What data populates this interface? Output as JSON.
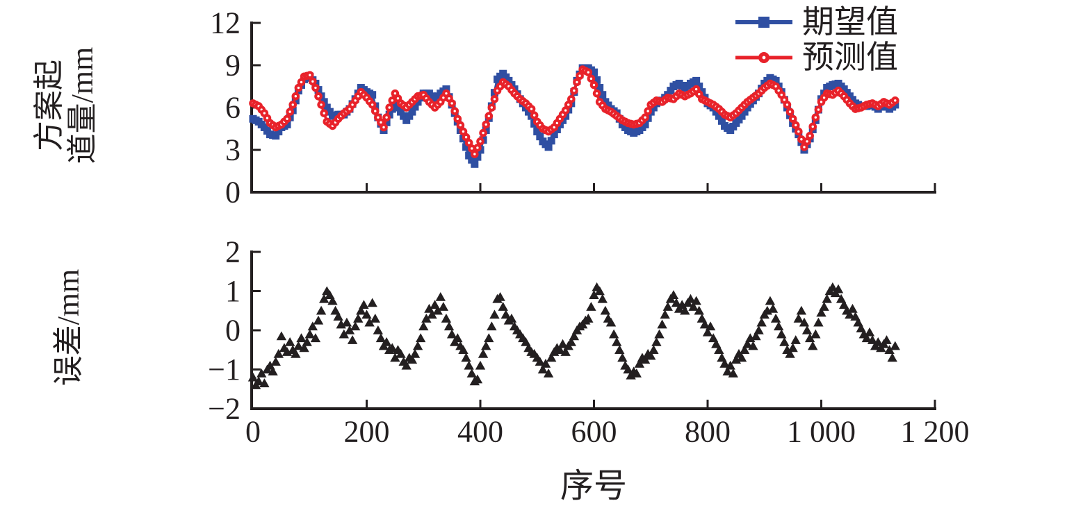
{
  "figure": {
    "xlabel": "序号",
    "top_ylabel_line1": "方案起",
    "top_ylabel_line2": "道量/mm",
    "bottom_ylabel": "误差/mm",
    "legend": {
      "expected": "期望值",
      "predicted": "预测值"
    }
  },
  "colors": {
    "expected_blue": "#2F4FA2",
    "predicted_red": "#E8222A",
    "ink_black": "#231F20",
    "background": "#FFFFFF"
  },
  "chart_data": [
    {
      "type": "line",
      "title": "",
      "ylabel": "方案起道量/mm",
      "xlabel": "",
      "xlim": [
        0,
        1200
      ],
      "ylim": [
        0,
        12
      ],
      "yticks": [
        0,
        3,
        6,
        9,
        12
      ],
      "ytick_labels": [
        "0",
        "3",
        "6",
        "9",
        "12"
      ],
      "xticks": [
        0,
        200,
        400,
        600,
        800,
        1000,
        1200
      ],
      "xtick_labels_shown": false,
      "grid": false,
      "legend_position": "top-right",
      "x_start": 0,
      "x_step": 10,
      "series": [
        {
          "name": "期望值",
          "color": "#2F4FA2",
          "marker": "square",
          "values": [
            5.2,
            5.0,
            4.6,
            4.1,
            4.0,
            4.6,
            4.8,
            5.8,
            7.2,
            8.0,
            8.2,
            7.7,
            6.8,
            6.0,
            5.4,
            5.5,
            5.5,
            5.9,
            6.6,
            7.4,
            7.1,
            6.9,
            5.3,
            4.4,
            5.5,
            6.3,
            5.7,
            5.1,
            5.7,
            6.4,
            7.0,
            7.0,
            6.6,
            7.0,
            7.3,
            6.2,
            5.0,
            3.8,
            2.6,
            2.0,
            3.0,
            4.4,
            6.1,
            8.0,
            8.4,
            7.9,
            7.3,
            6.6,
            6.0,
            5.4,
            4.3,
            3.6,
            3.2,
            4.1,
            4.8,
            5.4,
            6.3,
            7.9,
            8.8,
            8.8,
            8.5,
            7.4,
            6.4,
            5.9,
            5.6,
            4.8,
            4.4,
            4.2,
            4.4,
            4.8,
            5.7,
            6.3,
            6.5,
            6.9,
            7.5,
            7.7,
            7.4,
            7.7,
            7.9,
            7.1,
            6.3,
            6.0,
            5.4,
            4.7,
            4.4,
            4.9,
            5.4,
            6.0,
            6.5,
            7.0,
            7.7,
            8.1,
            7.9,
            7.1,
            6.0,
            4.9,
            4.1,
            3.0,
            3.8,
            5.1,
            6.6,
            7.4,
            7.6,
            7.7,
            7.3,
            6.8,
            6.3,
            6.1,
            6.1,
            6.2,
            5.9,
            6.2,
            5.9,
            6.2
          ]
        },
        {
          "name": "预测值",
          "color": "#E8222A",
          "marker": "circle-dot",
          "values": [
            6.3,
            6.1,
            5.6,
            4.9,
            4.6,
            4.8,
            5.2,
            6.2,
            7.4,
            8.2,
            8.3,
            7.4,
            6.2,
            5.0,
            4.7,
            5.2,
            5.6,
            5.9,
            6.5,
            7.1,
            6.7,
            6.2,
            5.3,
            4.6,
            6.0,
            7.0,
            6.3,
            6.0,
            6.4,
            6.8,
            6.9,
            6.4,
            6.0,
            6.4,
            7.0,
            6.3,
            5.2,
            4.3,
            3.5,
            2.7,
            3.6,
            4.8,
            6.0,
            7.2,
            7.8,
            7.5,
            7.0,
            6.6,
            6.3,
            5.9,
            5.0,
            4.5,
            4.3,
            4.6,
            5.2,
            5.8,
            6.6,
            7.8,
            8.7,
            8.5,
            7.6,
            6.4,
            5.9,
            5.7,
            5.4,
            5.1,
            4.9,
            4.8,
            4.9,
            5.3,
            6.2,
            6.5,
            6.4,
            6.7,
            6.6,
            7.0,
            6.8,
            7.0,
            7.3,
            6.6,
            6.4,
            6.2,
            5.9,
            5.5,
            5.3,
            5.6,
            6.0,
            6.4,
            6.7,
            7.0,
            7.4,
            7.7,
            7.5,
            6.9,
            6.2,
            5.2,
            4.3,
            3.2,
            4.0,
            5.3,
            6.4,
            7.0,
            6.9,
            7.2,
            6.8,
            6.3,
            5.9,
            6.0,
            6.2,
            6.3,
            6.1,
            6.4,
            6.2,
            6.5
          ]
        }
      ]
    },
    {
      "type": "scatter",
      "title": "",
      "ylabel": "误差/mm",
      "xlabel": "序号",
      "xlim": [
        0,
        1200
      ],
      "ylim": [
        -2,
        2
      ],
      "yticks": [
        -2,
        -1,
        0,
        1,
        2
      ],
      "ytick_labels": [
        "−2",
        "−1",
        "0",
        "1",
        "2"
      ],
      "xticks": [
        0,
        200,
        400,
        600,
        800,
        1000,
        1200
      ],
      "xtick_labels": [
        "0",
        "200",
        "400",
        "600",
        "800",
        "1 000",
        "1 200"
      ],
      "grid": false,
      "marker": "triangle-up",
      "color": "#231F20",
      "x_start": 0,
      "x_step": 5,
      "values": [
        -1.2,
        -1.4,
        -1.3,
        -1.1,
        -1.35,
        -1.0,
        -0.9,
        -1.05,
        -0.8,
        -0.6,
        -0.15,
        -0.45,
        -0.55,
        -0.3,
        -0.5,
        -0.6,
        -0.4,
        -0.2,
        -0.45,
        -0.3,
        -0.1,
        0.1,
        -0.2,
        0.25,
        0.5,
        0.8,
        1.0,
        0.9,
        0.75,
        0.5,
        0.35,
        0.15,
        -0.1,
        0.2,
        0.0,
        -0.25,
        0.1,
        0.3,
        0.5,
        0.65,
        0.4,
        0.2,
        0.7,
        0.3,
        0.0,
        -0.2,
        -0.4,
        -0.3,
        -0.5,
        -0.45,
        -0.7,
        -0.5,
        -0.6,
        -0.8,
        -0.9,
        -0.7,
        -0.75,
        -0.6,
        -0.4,
        -0.2,
        0.1,
        0.3,
        0.55,
        0.4,
        0.65,
        0.5,
        0.85,
        0.6,
        0.3,
        0.1,
        -0.1,
        -0.3,
        -0.2,
        -0.4,
        -0.5,
        -0.7,
        -0.9,
        -1.1,
        -1.3,
        -1.25,
        -0.9,
        -0.6,
        -0.4,
        -0.2,
        0.1,
        0.4,
        0.8,
        0.85,
        0.6,
        0.4,
        0.25,
        0.3,
        0.1,
        0.0,
        -0.1,
        -0.2,
        -0.3,
        -0.45,
        -0.55,
        -0.6,
        -0.7,
        -0.8,
        -1.0,
        -0.85,
        -1.1,
        -0.7,
        -0.55,
        -0.45,
        -0.5,
        -0.35,
        -0.55,
        -0.4,
        -0.3,
        -0.15,
        0.0,
        0.1,
        0.15,
        0.25,
        0.3,
        0.6,
        0.9,
        1.1,
        1.0,
        0.8,
        0.5,
        0.3,
        0.2,
        -0.1,
        -0.3,
        -0.5,
        -0.7,
        -0.9,
        -1.0,
        -1.15,
        -1.05,
        -1.1,
        -0.85,
        -0.7,
        -0.75,
        -0.6,
        -0.65,
        -0.5,
        -0.3,
        -0.1,
        0.15,
        0.4,
        0.6,
        0.8,
        0.9,
        0.7,
        0.55,
        0.65,
        0.5,
        0.7,
        0.8,
        0.6,
        0.75,
        0.5,
        0.3,
        0.15,
        -0.05,
        0.1,
        -0.2,
        -0.35,
        -0.5,
        -0.7,
        -0.85,
        -1.05,
        -0.9,
        -1.1,
        -0.75,
        -0.6,
        -0.7,
        -0.5,
        -0.35,
        -0.2,
        -0.4,
        -0.15,
        0.0,
        0.2,
        0.4,
        0.5,
        0.75,
        0.55,
        0.3,
        0.1,
        -0.1,
        -0.3,
        -0.5,
        -0.6,
        -0.45,
        -0.25,
        0.3,
        0.5,
        0.2,
        0.0,
        -0.2,
        -0.4,
        -0.1,
        0.2,
        0.45,
        0.6,
        0.8,
        1.0,
        1.1,
        0.95,
        1.05,
        0.8,
        0.65,
        0.5,
        0.4,
        0.55,
        0.35,
        0.2,
        0.05,
        -0.1,
        -0.2,
        -0.05,
        -0.25,
        -0.4,
        -0.3,
        -0.45,
        -0.35,
        -0.25,
        -0.5,
        -0.7,
        -0.4
      ]
    }
  ]
}
